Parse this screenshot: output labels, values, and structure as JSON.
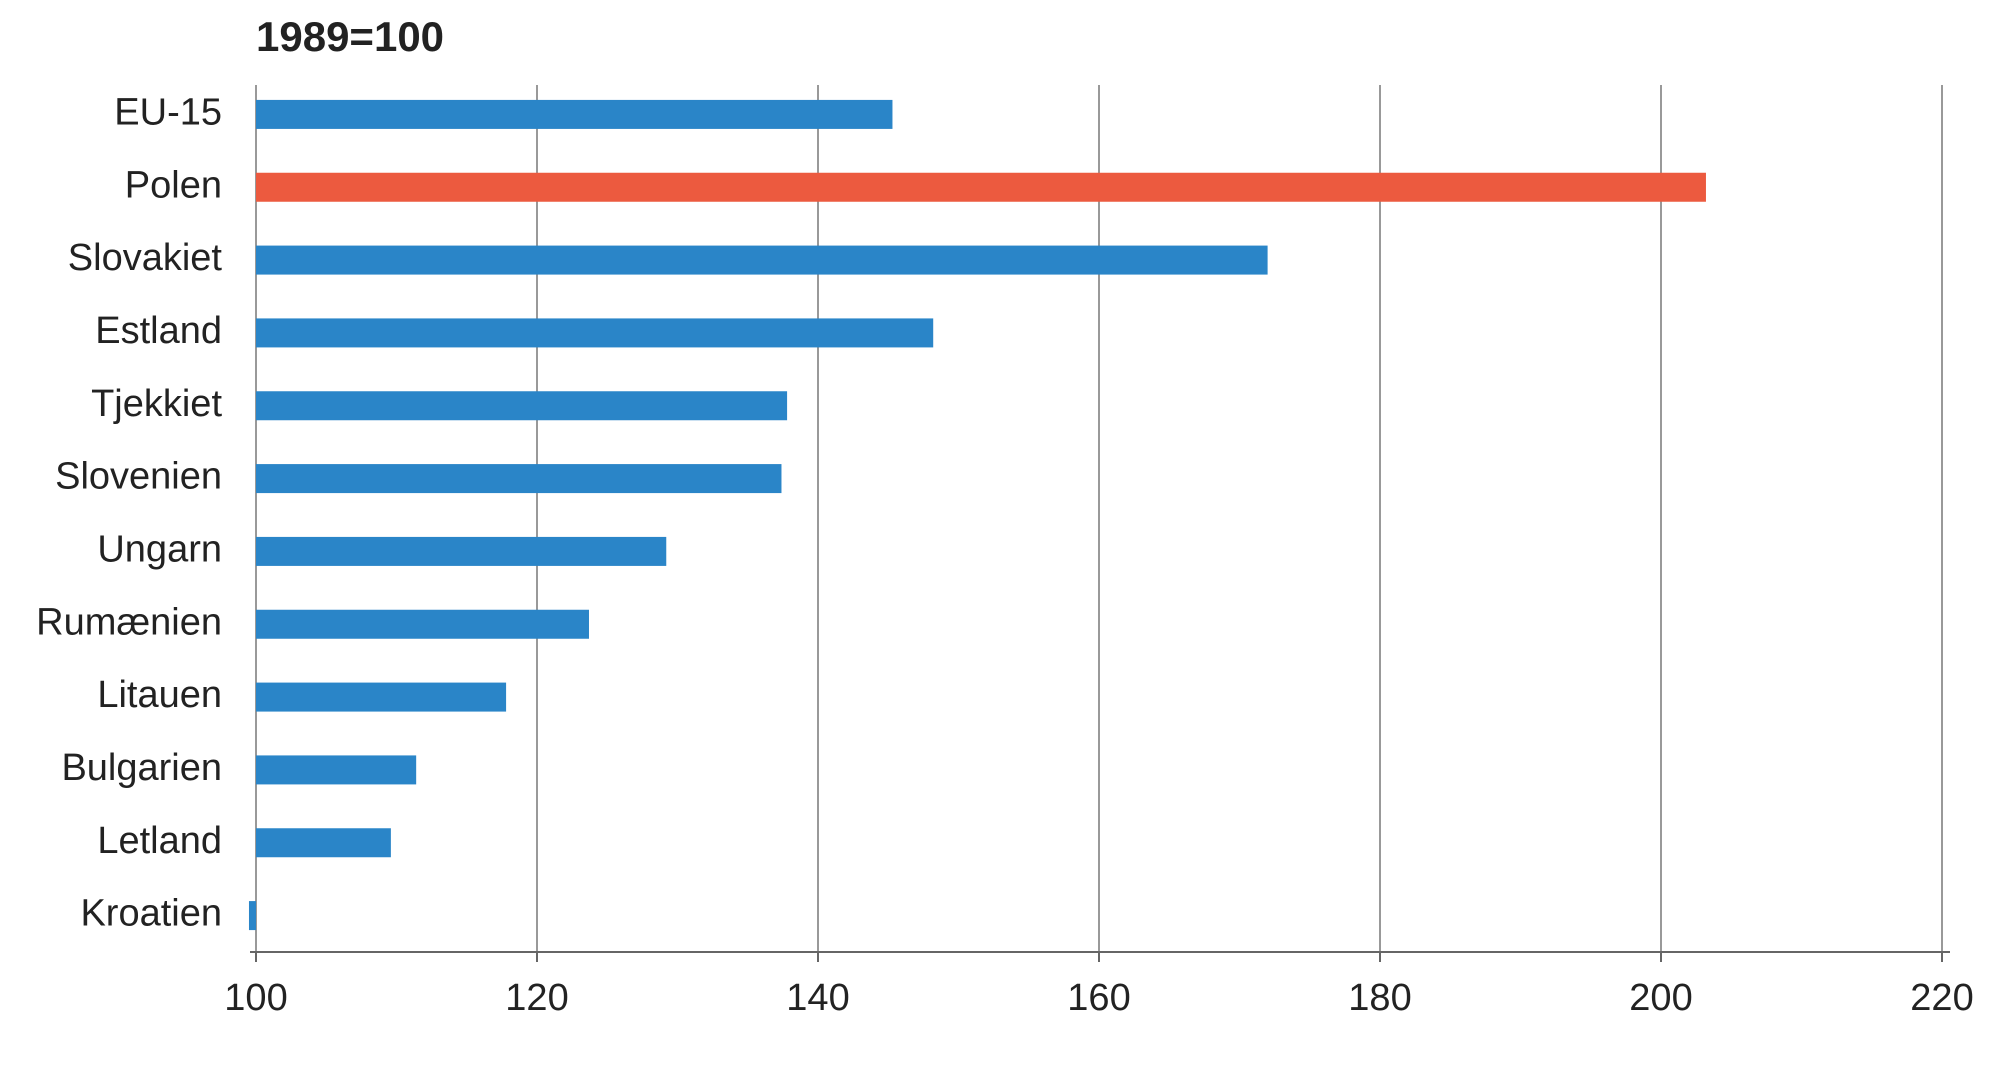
{
  "chart_data": {
    "type": "hbar",
    "title": "1989=100",
    "categories": [
      "EU-15",
      "Polen",
      "Slovakiet",
      "Estland",
      "Tjekkiet",
      "Slovenien",
      "Ungarn",
      "Rumænien",
      "Litauen",
      "Bulgarien",
      "Letland",
      "Kroatien"
    ],
    "values": [
      145.3,
      203.2,
      172,
      148.2,
      137.8,
      137.4,
      129.2,
      123.7,
      117.8,
      111.4,
      109.6,
      99.5
    ],
    "colors": [
      "#2a85c8",
      "#ec5a3f",
      "#2a85c8",
      "#2a85c8",
      "#2a85c8",
      "#2a85c8",
      "#2a85c8",
      "#2a85c8",
      "#2a85c8",
      "#2a85c8",
      "#2a85c8",
      "#2a85c8"
    ],
    "xlim": [
      100,
      220
    ],
    "xticks": [
      100,
      120,
      140,
      160,
      180,
      200,
      220
    ],
    "grid": true
  }
}
